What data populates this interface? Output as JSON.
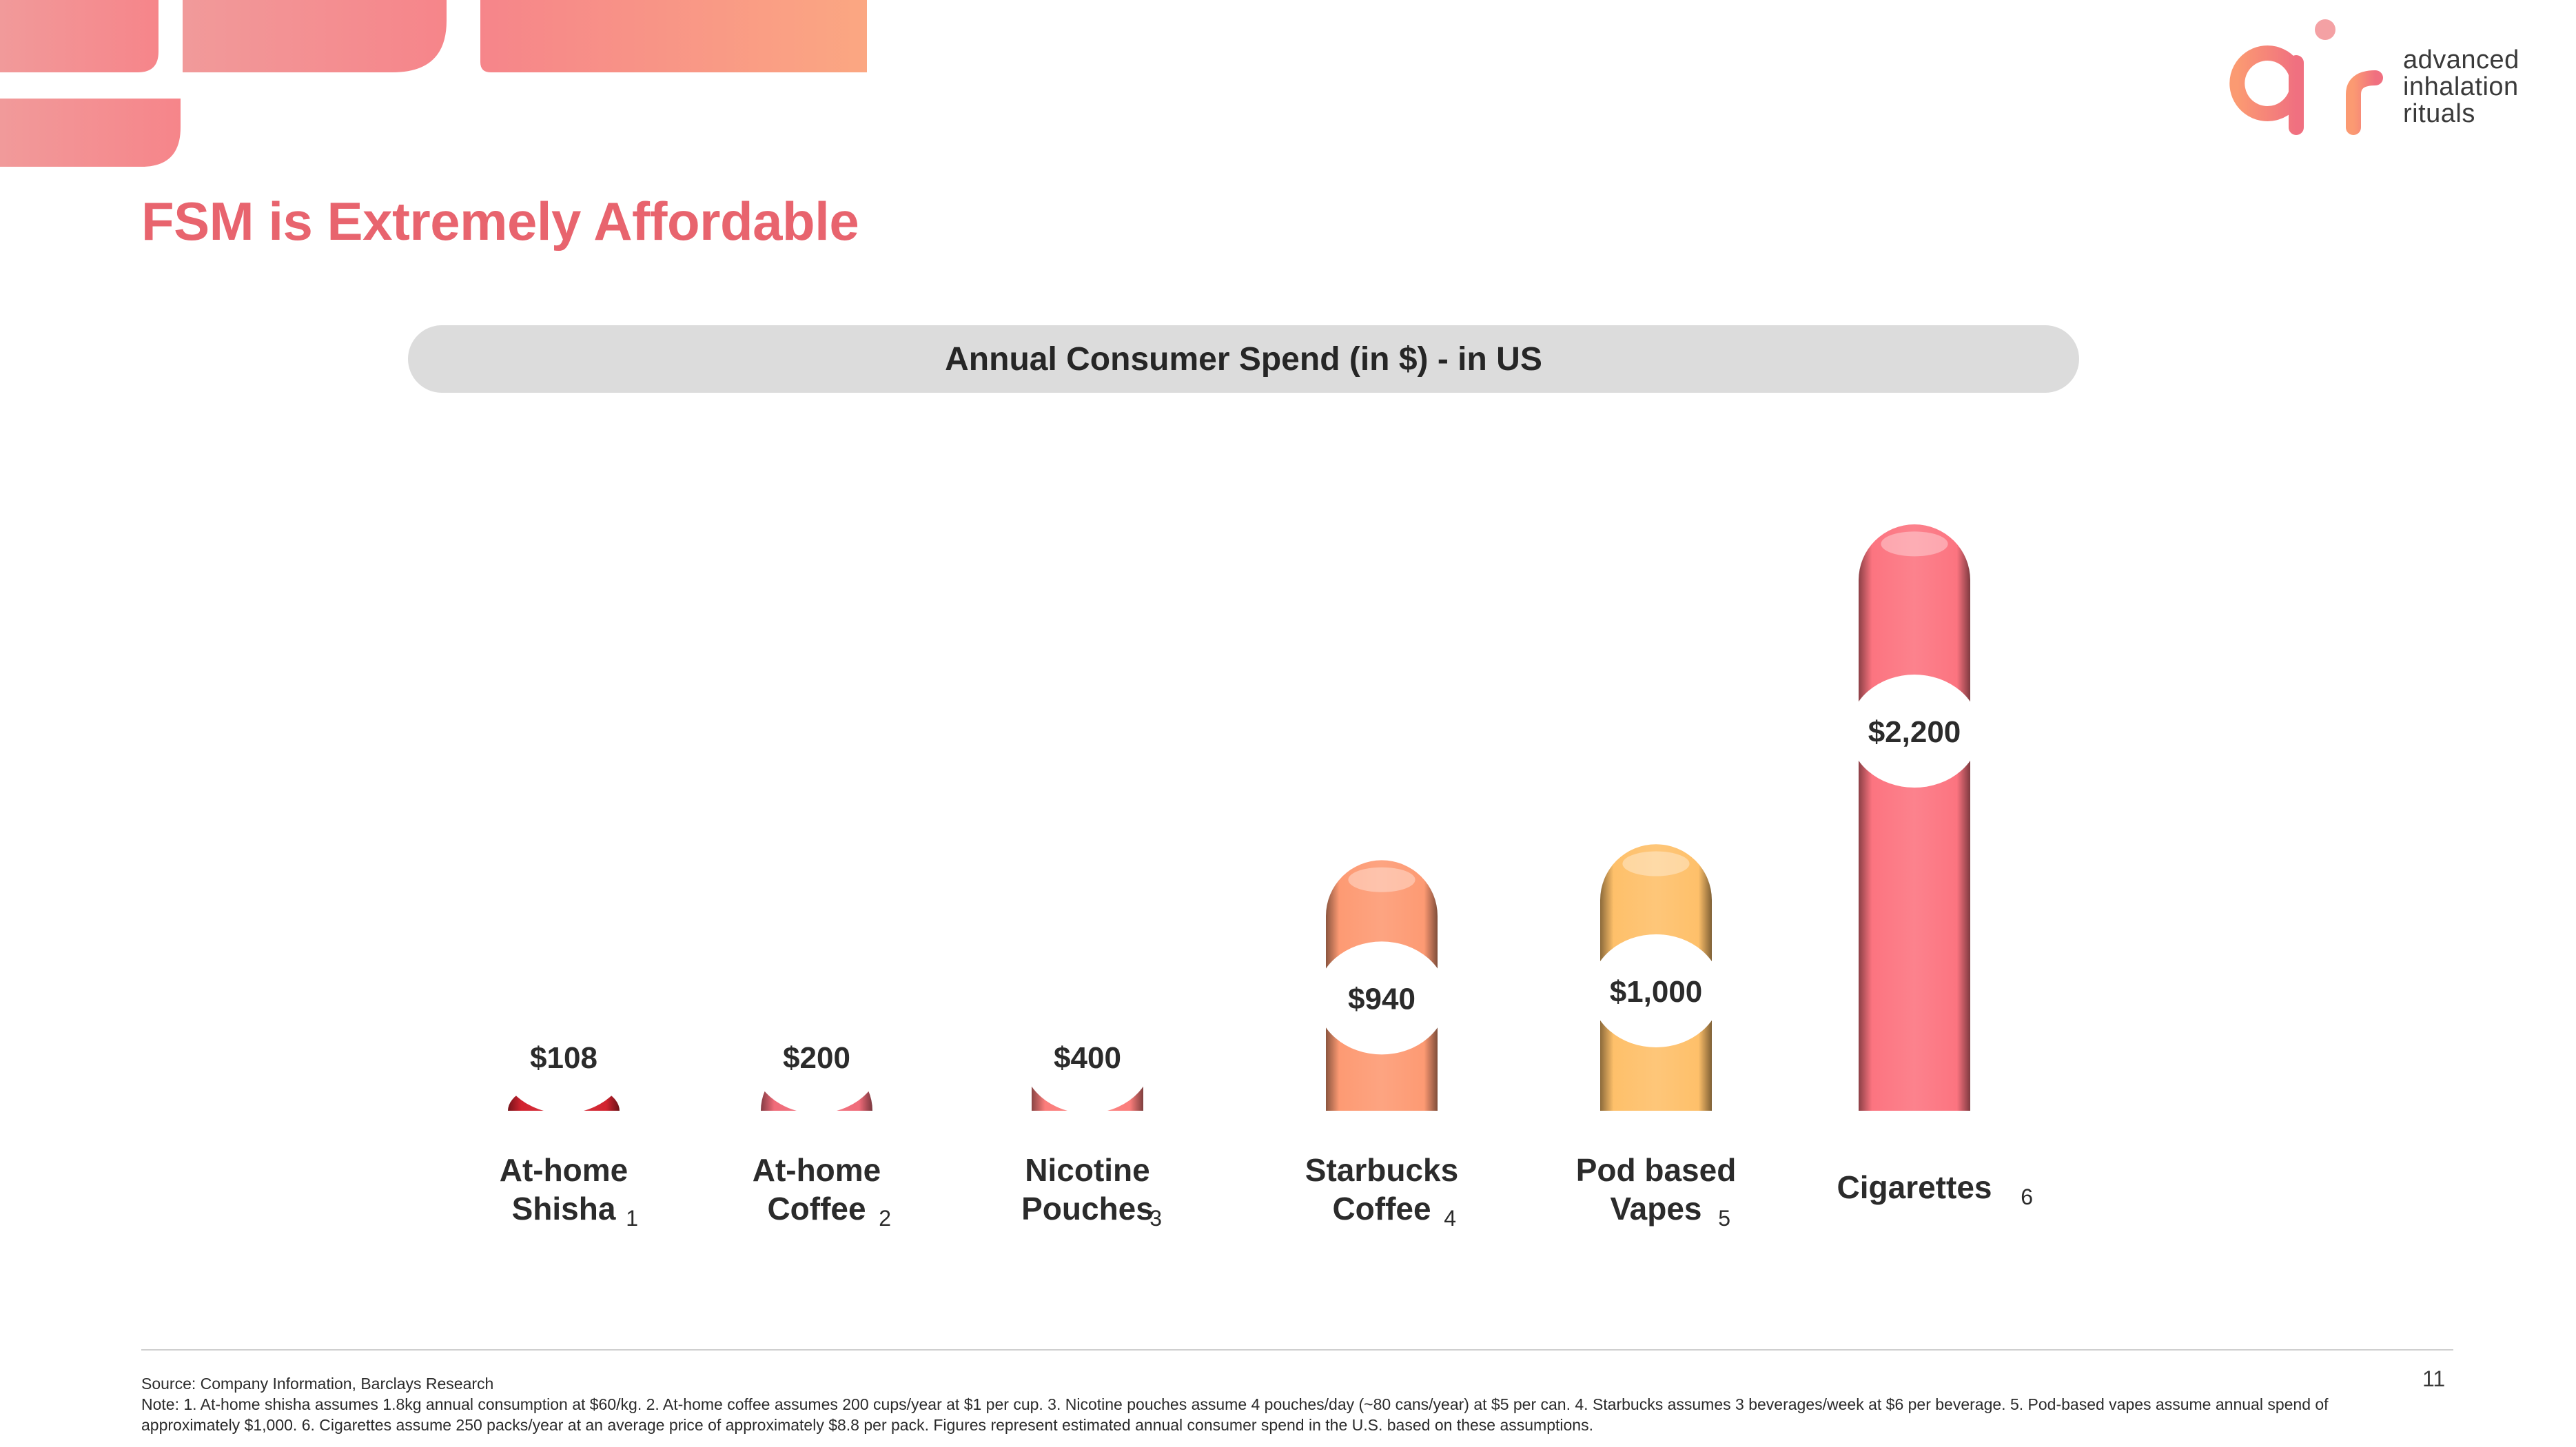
{
  "branding": {
    "logo_word": "air",
    "logo_text_lines": [
      "advanced",
      "inhalation",
      "rituals"
    ]
  },
  "colors": {
    "accent": "#e8646e",
    "header_bg": "#dcdcdc",
    "deco_coral": "#f6858a",
    "deco_peach": "#fba782"
  },
  "page": {
    "title": "FSM is Extremely Affordable",
    "page_number": "11"
  },
  "chart_data": {
    "type": "bar",
    "title": "Annual Consumer Spend (in $) - in US",
    "categories": [
      "At-home Shisha",
      "At-home Coffee",
      "Nicotine Pouches",
      "Starbucks Coffee",
      "Pod based Vapes",
      "Cigarettes"
    ],
    "category_lines": [
      [
        "At-home",
        "Shisha"
      ],
      [
        "At-home",
        "Coffee"
      ],
      [
        "Nicotine",
        "Pouches"
      ],
      [
        "Starbucks",
        "Coffee"
      ],
      [
        "Pod based",
        "Vapes"
      ],
      [
        "Cigarettes"
      ]
    ],
    "footnote_marks": [
      "1",
      "2",
      "3",
      "4",
      "5",
      "6"
    ],
    "values": [
      108,
      200,
      400,
      940,
      1000,
      2200
    ],
    "value_labels": [
      "$108",
      "$200",
      "$400",
      "$940",
      "$1,000",
      "$2,200"
    ],
    "bar_colors": [
      "#d2232f",
      "#f06b79",
      "#fb7d7b",
      "#fd9a73",
      "#fec06a",
      "#fc7480"
    ],
    "grid": false,
    "legend": "none"
  },
  "footer": {
    "source": "Source: Company Information, Barclays Research",
    "note": "Note: 1. At-home shisha assumes 1.8kg annual consumption at $60/kg. 2. At-home coffee assumes 200 cups/year at $1 per cup. 3. Nicotine pouches assume 4 pouches/day (~80 cans/year) at $5 per can. 4. Starbucks assumes 3 beverages/week at $6 per beverage. 5. Pod-based vapes assume annual spend of approximately $1,000. 6. Cigarettes assume 250 packs/year at an average price of approximately $8.8 per pack. Figures represent estimated annual consumer spend in the U.S. based on these assumptions."
  }
}
